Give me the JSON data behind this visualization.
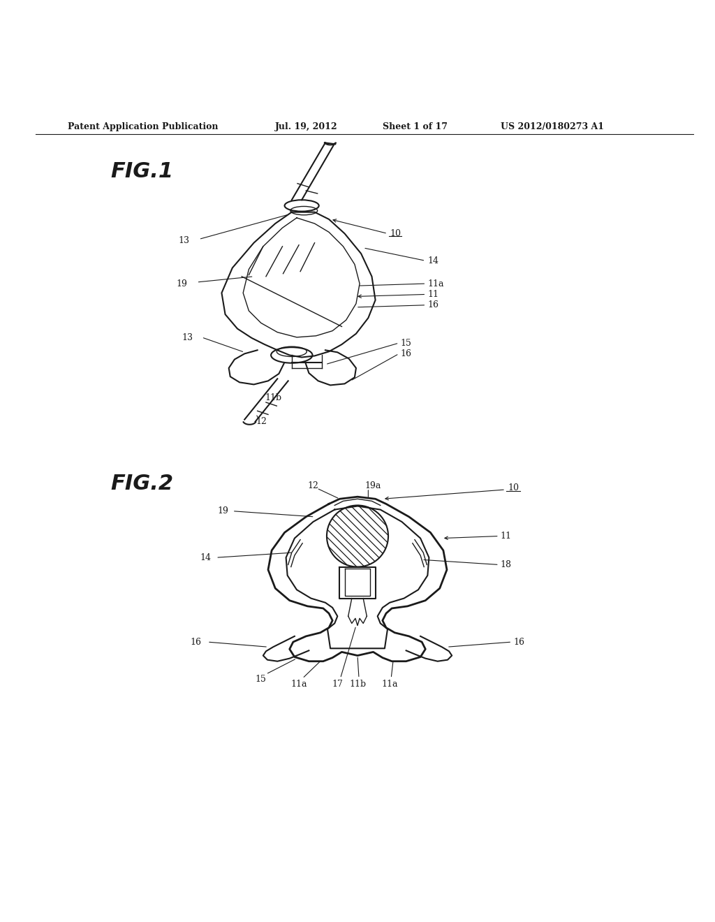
{
  "bg_color": "#ffffff",
  "line_color": "#1a1a1a",
  "header_text": "Patent Application Publication",
  "header_date": "Jul. 19, 2012",
  "header_sheet": "Sheet 1 of 17",
  "header_patent": "US 2012/0180273 A1",
  "fig1_label": "FIG.1",
  "fig2_label": "FIG.2"
}
